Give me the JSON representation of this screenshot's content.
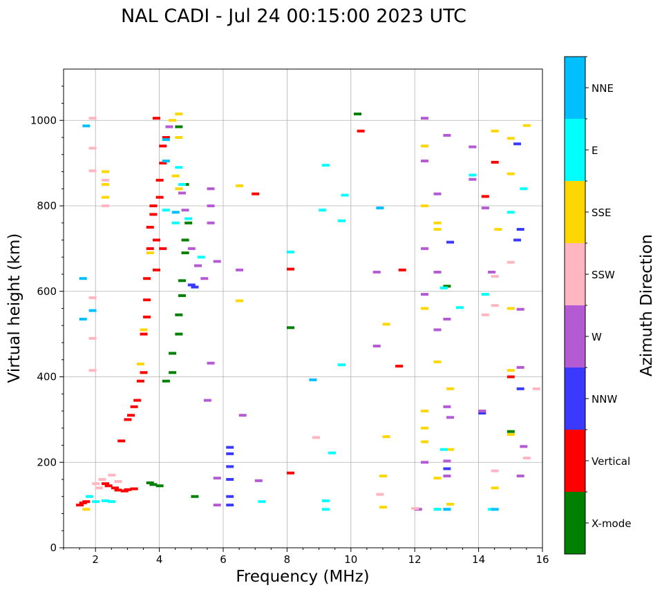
{
  "chart_data": {
    "type": "scatter",
    "title": "NAL CADI - Jul 24 00:15:00 2023 UTC",
    "xlabel": "Frequency (MHz)",
    "ylabel": "Virtual height (km)",
    "xlim": [
      1,
      16
    ],
    "ylim": [
      0,
      1120
    ],
    "xticks": [
      2,
      4,
      6,
      8,
      10,
      12,
      14,
      16
    ],
    "yticks": [
      0,
      200,
      400,
      600,
      800,
      1000
    ],
    "grid": true,
    "colorbar": {
      "label": "Azimuth Direction",
      "categories": [
        {
          "name": "X-mode",
          "color": "#008000"
        },
        {
          "name": "Vertical",
          "color": "#ff0000"
        },
        {
          "name": "NNW",
          "color": "#3a3aff"
        },
        {
          "name": "W",
          "color": "#b45ad2"
        },
        {
          "name": "SSW",
          "color": "#ffb6c1"
        },
        {
          "name": "SSE",
          "color": "#ffd700"
        },
        {
          "name": "E",
          "color": "#00ffff"
        },
        {
          "name": "NNE",
          "color": "#00bfff"
        }
      ]
    },
    "series": [
      {
        "name": "Vertical",
        "points": [
          [
            1.5,
            100
          ],
          [
            1.6,
            105
          ],
          [
            1.7,
            108
          ],
          [
            2.3,
            150
          ],
          [
            2.4,
            145
          ],
          [
            2.6,
            140
          ],
          [
            2.7,
            135
          ],
          [
            2.9,
            133
          ],
          [
            3.0,
            136
          ],
          [
            3.2,
            138
          ],
          [
            2.8,
            250
          ],
          [
            3.0,
            300
          ],
          [
            3.1,
            310
          ],
          [
            3.2,
            330
          ],
          [
            3.3,
            345
          ],
          [
            3.4,
            390
          ],
          [
            3.5,
            410
          ],
          [
            3.5,
            500
          ],
          [
            3.6,
            540
          ],
          [
            3.6,
            580
          ],
          [
            3.6,
            630
          ],
          [
            3.7,
            700
          ],
          [
            3.7,
            750
          ],
          [
            3.8,
            780
          ],
          [
            3.8,
            800
          ],
          [
            3.9,
            650
          ],
          [
            3.9,
            720
          ],
          [
            4.0,
            820
          ],
          [
            4.0,
            860
          ],
          [
            4.1,
            900
          ],
          [
            4.1,
            940
          ],
          [
            4.2,
            960
          ],
          [
            3.9,
            1005
          ],
          [
            4.1,
            700
          ],
          [
            7.0,
            828
          ],
          [
            8.1,
            652
          ],
          [
            10.3,
            975
          ],
          [
            11.5,
            425
          ],
          [
            11.6,
            650
          ],
          [
            14.1,
            318
          ],
          [
            14.2,
            822
          ],
          [
            14.5,
            902
          ],
          [
            15.0,
            400
          ],
          [
            8.1,
            175
          ]
        ]
      },
      {
        "name": "X-mode",
        "points": [
          [
            3.7,
            152
          ],
          [
            3.8,
            148
          ],
          [
            4.0,
            145
          ],
          [
            4.2,
            390
          ],
          [
            4.4,
            410
          ],
          [
            4.4,
            455
          ],
          [
            4.6,
            500
          ],
          [
            4.6,
            545
          ],
          [
            4.7,
            590
          ],
          [
            4.7,
            625
          ],
          [
            4.8,
            690
          ],
          [
            4.8,
            720
          ],
          [
            4.9,
            760
          ],
          [
            4.8,
            850
          ],
          [
            4.6,
            985
          ],
          [
            5.1,
            120
          ],
          [
            10.2,
            1015
          ],
          [
            13.0,
            612
          ],
          [
            15.0,
            272
          ],
          [
            8.1,
            515
          ]
        ]
      },
      {
        "name": "NNW",
        "points": [
          [
            6.2,
            100
          ],
          [
            6.2,
            120
          ],
          [
            6.2,
            160
          ],
          [
            6.2,
            190
          ],
          [
            6.2,
            220
          ],
          [
            6.2,
            235
          ],
          [
            5.1,
            610
          ],
          [
            13.1,
            715
          ],
          [
            13.0,
            185
          ],
          [
            15.2,
            945
          ],
          [
            15.2,
            720
          ],
          [
            15.3,
            745
          ],
          [
            15.3,
            372
          ],
          [
            14.1,
            315
          ],
          [
            5.0,
            615
          ]
        ]
      },
      {
        "name": "W",
        "points": [
          [
            4.3,
            985
          ],
          [
            4.7,
            830
          ],
          [
            4.8,
            790
          ],
          [
            5.0,
            700
          ],
          [
            5.2,
            660
          ],
          [
            5.4,
            630
          ],
          [
            5.8,
            670
          ],
          [
            5.6,
            760
          ],
          [
            5.6,
            800
          ],
          [
            5.6,
            840
          ],
          [
            6.5,
            650
          ],
          [
            5.6,
            432
          ],
          [
            5.5,
            345
          ],
          [
            6.6,
            310
          ],
          [
            5.8,
            163
          ],
          [
            7.1,
            157
          ],
          [
            5.8,
            100
          ],
          [
            10.8,
            472
          ],
          [
            10.8,
            645
          ],
          [
            12.3,
            1005
          ],
          [
            12.3,
            905
          ],
          [
            12.7,
            828
          ],
          [
            12.3,
            700
          ],
          [
            12.7,
            645
          ],
          [
            12.3,
            593
          ],
          [
            13.0,
            535
          ],
          [
            12.7,
            510
          ],
          [
            13.1,
            305
          ],
          [
            13.0,
            330
          ],
          [
            12.3,
            200
          ],
          [
            13.0,
            203
          ],
          [
            13.0,
            168
          ],
          [
            12.1,
            90
          ],
          [
            13.8,
            938
          ],
          [
            13.8,
            862
          ],
          [
            14.2,
            795
          ],
          [
            14.4,
            645
          ],
          [
            15.3,
            558
          ],
          [
            15.3,
            422
          ],
          [
            15.4,
            237
          ],
          [
            15.3,
            168
          ],
          [
            13.0,
            965
          ],
          [
            14.1,
            320
          ]
        ]
      },
      {
        "name": "SSW",
        "points": [
          [
            1.9,
            1005
          ],
          [
            1.9,
            935
          ],
          [
            1.9,
            882
          ],
          [
            2.3,
            860
          ],
          [
            2.3,
            800
          ],
          [
            1.9,
            585
          ],
          [
            1.9,
            490
          ],
          [
            1.9,
            415
          ],
          [
            2.0,
            150
          ],
          [
            2.1,
            140
          ],
          [
            2.2,
            160
          ],
          [
            2.5,
            170
          ],
          [
            2.7,
            155
          ],
          [
            8.9,
            258
          ],
          [
            10.9,
            125
          ],
          [
            12.0,
            92
          ],
          [
            14.2,
            545
          ],
          [
            14.5,
            567
          ],
          [
            14.5,
            635
          ],
          [
            15.0,
            668
          ],
          [
            15.5,
            210
          ],
          [
            14.5,
            180
          ],
          [
            15.8,
            372
          ]
        ]
      },
      {
        "name": "SSE",
        "points": [
          [
            2.3,
            880
          ],
          [
            2.3,
            850
          ],
          [
            2.3,
            820
          ],
          [
            1.7,
            90
          ],
          [
            4.6,
            1015
          ],
          [
            4.4,
            1000
          ],
          [
            4.6,
            960
          ],
          [
            4.5,
            870
          ],
          [
            4.6,
            840
          ],
          [
            3.7,
            690
          ],
          [
            3.5,
            510
          ],
          [
            3.4,
            430
          ],
          [
            6.5,
            847
          ],
          [
            6.5,
            578
          ],
          [
            11.1,
            523
          ],
          [
            11.1,
            260
          ],
          [
            11.0,
            168
          ],
          [
            11.0,
            95
          ],
          [
            12.3,
            940
          ],
          [
            12.3,
            800
          ],
          [
            12.7,
            760
          ],
          [
            12.7,
            745
          ],
          [
            12.3,
            560
          ],
          [
            12.7,
            435
          ],
          [
            12.3,
            320
          ],
          [
            12.3,
            280
          ],
          [
            12.3,
            248
          ],
          [
            13.1,
            372
          ],
          [
            13.1,
            230
          ],
          [
            12.7,
            163
          ],
          [
            13.1,
            102
          ],
          [
            12.7,
            90
          ],
          [
            14.6,
            745
          ],
          [
            14.5,
            140
          ],
          [
            15.0,
            958
          ],
          [
            15.0,
            875
          ],
          [
            15.0,
            560
          ],
          [
            15.0,
            415
          ],
          [
            15.0,
            265
          ],
          [
            15.5,
            988
          ],
          [
            14.5,
            975
          ]
        ]
      },
      {
        "name": "E",
        "points": [
          [
            1.8,
            120
          ],
          [
            2.0,
            108
          ],
          [
            2.3,
            110
          ],
          [
            2.5,
            108
          ],
          [
            4.2,
            790
          ],
          [
            4.5,
            760
          ],
          [
            4.6,
            890
          ],
          [
            4.9,
            770
          ],
          [
            4.7,
            850
          ],
          [
            5.3,
            680
          ],
          [
            9.2,
            895
          ],
          [
            9.1,
            790
          ],
          [
            9.4,
            222
          ],
          [
            9.2,
            110
          ],
          [
            9.2,
            90
          ],
          [
            9.7,
            765
          ],
          [
            9.8,
            825
          ],
          [
            9.7,
            428
          ],
          [
            8.1,
            692
          ],
          [
            7.2,
            108
          ],
          [
            12.7,
            90
          ],
          [
            13.0,
            90
          ],
          [
            13.4,
            562
          ],
          [
            13.8,
            872
          ],
          [
            12.9,
            608
          ],
          [
            14.2,
            593
          ],
          [
            14.4,
            90
          ],
          [
            15.0,
            785
          ],
          [
            15.4,
            840
          ],
          [
            12.9,
            230
          ]
        ]
      },
      {
        "name": "NNE",
        "points": [
          [
            1.7,
            987
          ],
          [
            1.6,
            630
          ],
          [
            1.6,
            535
          ],
          [
            1.9,
            555
          ],
          [
            4.2,
            955
          ],
          [
            4.2,
            905
          ],
          [
            4.5,
            785
          ],
          [
            10.9,
            795
          ],
          [
            8.8,
            393
          ],
          [
            13.0,
            90
          ],
          [
            14.5,
            90
          ]
        ]
      }
    ]
  }
}
